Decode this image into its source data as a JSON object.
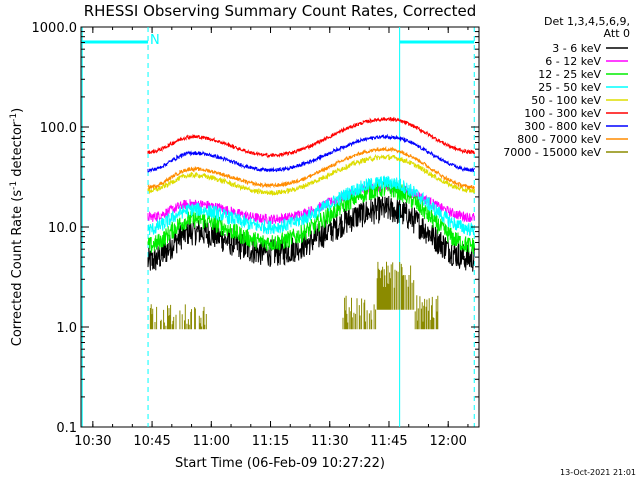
{
  "chart_data": {
    "type": "line",
    "title": "RHESSI Observing Summary Count Rates, Corrected",
    "xlabel": "Start Time (06-Feb-09 10:27:22)",
    "ylabel_main": "Corrected Count Rate (s",
    "ylabel_sup1": "-1",
    "ylabel_mid": " detector",
    "ylabel_sup2": "-1",
    "ylabel_end": ")",
    "yscale": "log",
    "ylim": [
      0.1,
      1000
    ],
    "xlim_minutes": [
      10.45,
      12.13
    ],
    "x_ticks": [
      "10:30",
      "10:45",
      "11:00",
      "11:15",
      "11:30",
      "11:45",
      "12:00"
    ],
    "y_ticks": [
      "0.1",
      "1.0",
      "10.0",
      "100.0",
      "1000.0"
    ],
    "legend_header": [
      "Det 1,3,4,5,6,9,",
      "Att 0"
    ],
    "legend_position": "top-right",
    "flag_label": "N",
    "timestamp": "13-Oct-2021 21:01",
    "series": [
      {
        "name": "3 - 6 keV",
        "color": "#000000",
        "level": [
          4.5,
          9,
          5.5,
          15,
          4.8
        ],
        "noise": 0.14
      },
      {
        "name": "6 - 12 keV",
        "color": "#ff00ff",
        "level": [
          12.5,
          17,
          12,
          25,
          12.5
        ],
        "noise": 0.05
      },
      {
        "name": "12 - 25 keV",
        "color": "#00ee00",
        "level": [
          6.5,
          12,
          7,
          24,
          6.5
        ],
        "noise": 0.09
      },
      {
        "name": "25 - 50 keV",
        "color": "#00ffff",
        "level": [
          9.5,
          15,
          10,
          28,
          9.5
        ],
        "noise": 0.07
      },
      {
        "name": "50 - 100 keV",
        "color": "#dddd00",
        "level": [
          23,
          33,
          22,
          50,
          23
        ],
        "noise": 0.025
      },
      {
        "name": "100 - 300 keV",
        "color": "#ff0000",
        "level": [
          56,
          80,
          52,
          120,
          56
        ],
        "noise": 0.018
      },
      {
        "name": "300 - 800 keV",
        "color": "#0000ff",
        "level": [
          37,
          55,
          37,
          80,
          37
        ],
        "noise": 0.018
      },
      {
        "name": "800 - 7000 keV",
        "color": "#ff8c00",
        "level": [
          25,
          38,
          26,
          60,
          25
        ],
        "noise": 0.018
      },
      {
        "name": "7000 - 15000 keV",
        "color": "#8b8b00",
        "level": [
          0,
          1.3,
          0,
          2.5,
          0
        ],
        "noise": 0.25
      }
    ],
    "annotation_lines": [
      {
        "x_minutes": 10.455,
        "color": "#00ffff",
        "style": "solid"
      },
      {
        "x_minutes": 10.733,
        "color": "#00ffff",
        "style": "dashed"
      },
      {
        "x_minutes": 11.795,
        "color": "#00ffff",
        "style": "solid"
      },
      {
        "x_minutes": 12.11,
        "color": "#00ffff",
        "style": "dashed"
      }
    ],
    "night_bars": [
      {
        "x_start": 10.455,
        "x_end": 10.733
      },
      {
        "x_start": 11.795,
        "x_end": 12.11
      }
    ]
  }
}
